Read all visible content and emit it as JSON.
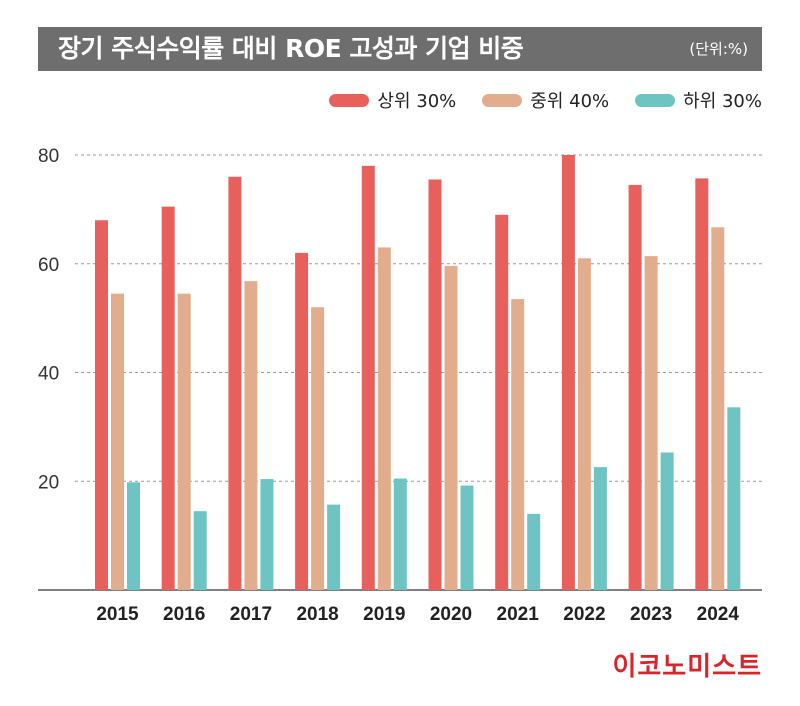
{
  "title": "장기 주식수익률 대비 ROE 고성과 기업 비중",
  "unit": "(단위:%)",
  "brand": "이코노미스트",
  "colors": {
    "top": "#e8605c",
    "mid": "#e1ad8c",
    "bottom": "#6ec4c2",
    "title_bg": "#6e6e6e",
    "brand": "#d7262b"
  },
  "chart_data": {
    "type": "bar",
    "categories": [
      "2015",
      "2016",
      "2017",
      "2018",
      "2019",
      "2020",
      "2021",
      "2022",
      "2023",
      "2024"
    ],
    "series": [
      {
        "name": "상위 30%",
        "color": "#e8605c",
        "values": [
          68,
          70.5,
          76,
          62,
          78,
          75.5,
          69,
          80,
          74.5,
          75.7
        ]
      },
      {
        "name": "중위 40%",
        "color": "#e1ad8c",
        "values": [
          54.5,
          54.5,
          56.8,
          52,
          63,
          59.6,
          53.5,
          61,
          61.4,
          66.7
        ]
      },
      {
        "name": "하위 30%",
        "color": "#6ec4c2",
        "values": [
          19.8,
          14.5,
          20.4,
          15.7,
          20.5,
          19.2,
          14,
          22.6,
          25.3,
          33.6
        ]
      }
    ],
    "y_ticks": [
      "20",
      "40",
      "60",
      "80"
    ],
    "ylim": [
      0,
      80
    ],
    "grid": "horizontal dashed",
    "legend_position": "top-right"
  }
}
